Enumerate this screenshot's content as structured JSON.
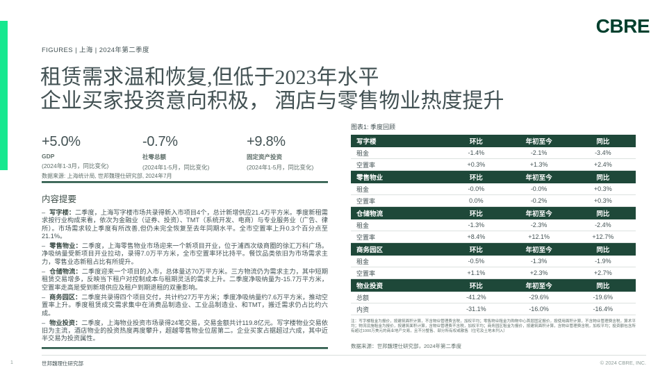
{
  "colors": {
    "accent": "#17E88F",
    "brand": "#003F2D",
    "header_green": "#1E4839",
    "text_dark": "#435254",
    "text_mid": "#5E6E69",
    "text_light": "#8C9B97",
    "border_light": "#DCE1DF",
    "rule_green": "#1A4B3A"
  },
  "header": {
    "logo": "CBRE",
    "eyebrow": "FIGURES  |  上海 |  2024年第二季度",
    "title_line1": "租赁需求温和恢复,但低于2023年水平",
    "title_line2": "企业买家投资意向积极， 酒店与零售物业热度提升"
  },
  "kpis": [
    {
      "value": "+5.0%",
      "label": "GDP",
      "period": "(2024年1-3月，同比变化)"
    },
    {
      "value": "-0.7%",
      "label": "社零总额",
      "period": "(2024年1-5月，同比变化)"
    },
    {
      "value": "+9.8%",
      "label": "固定资产投资",
      "period": "(2024年1-5月，同比变化)"
    }
  ],
  "kpi_source": "数据来源: 上海统计局, 世邦魏理仕研究部, 2024年7月",
  "summary": {
    "heading": "内容提要",
    "bullets": [
      {
        "term": "写字楼：",
        "text": "二季度，上海写字楼市场共录得新入市项目4个，总计新增供应21.4万平方米。季度新租需求按行业构成来看，依次为金融业（证券、投资）、TMT（系统开发、电商）与专业服务业（广告、律所）。市场需求较上季度有所改善,但仍未完全恢复至去年同期水平。全市空置率上升0.3个百分点至21.1%。"
      },
      {
        "term": "零售物业：",
        "text": "二季度，上海零售物业市场迎来一个新项目开业，位于浦西次级商圈的徐汇万科广场。净吸纳量受新项目开业拉动，录得7.0万平方米，全市空置率环比持平。餐饮品类依旧为市场需求主力，零售业态新租占比有所提升。"
      },
      {
        "term": "仓储物流：",
        "text": "二季度迎来一个项目的入市，总体量达70万平方米。三方物流仍为需求主力，其中短期租赁交易增多，反映当下租户对控制成本与租期灵活的需求上升。二季度净吸纳量为-15.7万平方米，空置率走高是受到新增供应及租户到期退租的双重影响。"
      },
      {
        "term": "商务园区：",
        "text": "二季度共录得四个项目交付，共计约27万平方米；季度净吸纳量约7.6万平方米，推动空置率上升。季度租赁成交需求集中在消费品制造业、工业品制造业、和TMT，搬迁需求仍占比约六成。"
      },
      {
        "term": "物业投资：",
        "text": "二季度，上海物业投资市场录得24笔交易，交易金额共计119.8亿元。写字楼物业交易依旧为主流，酒店物业的投资热度再度攀升，超越零售物业位居第二。企业买家占据超过六成，其中近半交易为投资属性。"
      }
    ]
  },
  "chart_data": {
    "type": "table",
    "title": "图表1: 季度回顾",
    "columns": [
      "环比",
      "年初至今",
      "同比"
    ],
    "sections": [
      {
        "name": "写字楼",
        "rows": [
          {
            "label": "租金",
            "values": [
              "-1.4%",
              "-2.1%",
              "-3.4%"
            ]
          },
          {
            "label": "空置率",
            "values": [
              "+0.3%",
              "+1.3%",
              "+2.4%"
            ]
          }
        ]
      },
      {
        "name": "零售物业",
        "rows": [
          {
            "label": "租金",
            "values": [
              "-0.0%",
              "-0.0%",
              "+0.3%"
            ]
          },
          {
            "label": "空置率",
            "values": [
              "0.0%",
              "-0.2%",
              "+0.3%"
            ]
          }
        ]
      },
      {
        "name": "仓储物流",
        "rows": [
          {
            "label": "租金",
            "values": [
              "-1.3%",
              "-2.3%",
              "-2.4%"
            ]
          },
          {
            "label": "空置率",
            "values": [
              "+8.4%",
              "+12.1%",
              "+12.7%"
            ]
          }
        ]
      },
      {
        "name": "商务园区",
        "rows": [
          {
            "label": "租金",
            "values": [
              "-0.5%",
              "-1.3%",
              "-1.9%"
            ]
          },
          {
            "label": "空置率",
            "values": [
              "+1.1%",
              "+2.3%",
              "+2.7%"
            ]
          }
        ]
      },
      {
        "name": "物业投资",
        "rows": [
          {
            "label": "总额",
            "values": [
              "-41.2%",
              "-29.6%",
              "-19.6%"
            ]
          },
          {
            "label": "内资",
            "values": [
              "-31.1%",
              "-16.0%",
              "-16.4%"
            ]
          }
        ]
      }
    ],
    "note": "注：写字楼租金为报价，按建筑面积计算，不含物业管理费含税，加权平均；零售物业租金为购物中心首层固定报价，按使用面积计算，不含物业管理费含税，算术平均；物流设施租金为报价，按建筑面积计算，含物业管理费不含税，加权平均；商务园区租金为报价，按建筑面积计算，含物业管理费含税，加权平均；投资额包含所有超过1000万美元的商业地产交易，且不分整售、部分所有权或散售（住宅及土地未列入）",
    "source": "数据来源：世邦魏理仕研究部，2024年第二季度"
  },
  "footer": {
    "page_number": "1",
    "left": "世邦魏理仕研究部",
    "right": "© 2024 CBRE, INC."
  }
}
